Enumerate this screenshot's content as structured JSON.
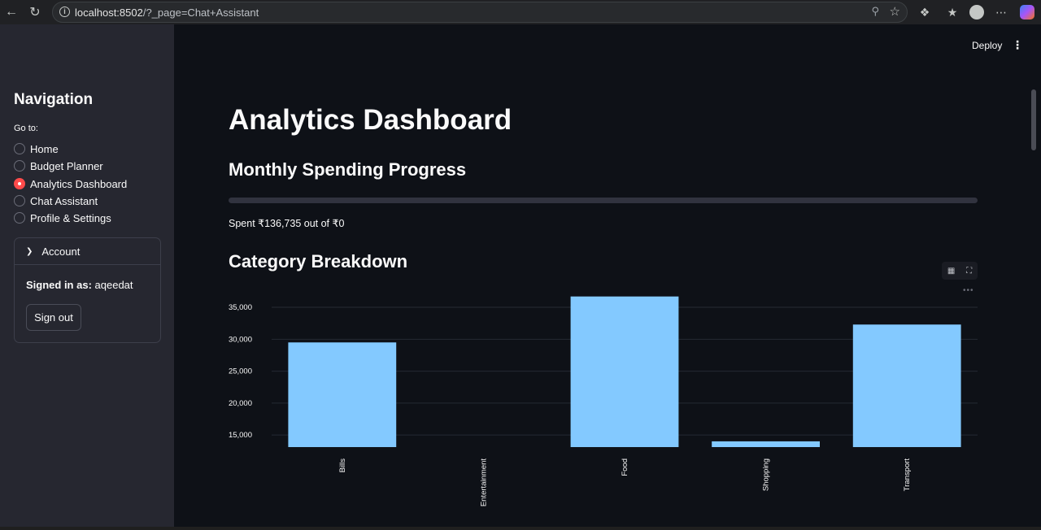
{
  "browser": {
    "url_host": "localhost:8502",
    "url_path": "/?_page=Chat+Assistant"
  },
  "sidebar": {
    "title": "Navigation",
    "goto_label": "Go to:",
    "items": [
      {
        "label": "Home",
        "selected": false
      },
      {
        "label": "Budget Planner",
        "selected": false
      },
      {
        "label": "Analytics Dashboard",
        "selected": true
      },
      {
        "label": "Chat Assistant",
        "selected": false
      },
      {
        "label": "Profile & Settings",
        "selected": false
      }
    ],
    "account": {
      "title": "Account",
      "signed_in_label": "Signed in as:",
      "username": "aqeedat",
      "signout_label": "Sign out"
    }
  },
  "header": {
    "deploy_label": "Deploy"
  },
  "main": {
    "title": "Analytics Dashboard",
    "progress_title": "Monthly Spending Progress",
    "progress_fraction": 0,
    "spent_text": "Spent ₹136,735 out of ₹0",
    "category_title": "Category Breakdown"
  },
  "colors": {
    "accent": "#ff4b4b",
    "bar": "#83c9ff",
    "background": "#0e1117",
    "sidebar": "#262730"
  },
  "chart_data": {
    "type": "bar",
    "categories": [
      "Bills",
      "Entertainment",
      "Food",
      "Shopping",
      "Transport"
    ],
    "values": [
      29500,
      12500,
      36700,
      14000,
      32300
    ],
    "ylim": [
      13100,
      37300
    ],
    "yticks": [
      15000,
      20000,
      25000,
      30000,
      35000
    ],
    "ytick_labels": [
      "15,000",
      "20,000",
      "25,000",
      "30,000",
      "35,000"
    ],
    "grid": true
  }
}
